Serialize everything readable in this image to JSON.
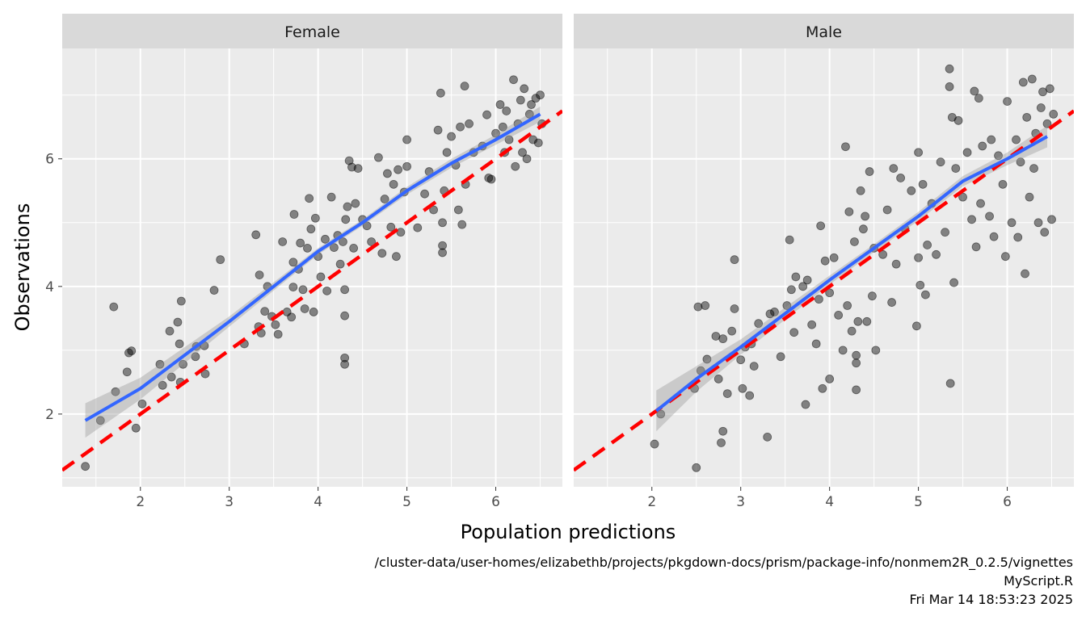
{
  "chart_data": {
    "type": "scatter",
    "xlabel": "Population predictions",
    "ylabel": "Observations",
    "xlim": [
      1.12,
      6.75
    ],
    "ylim": [
      0.86,
      7.73
    ],
    "xticks": [
      2,
      3,
      4,
      5,
      6
    ],
    "yticks": [
      2,
      4,
      6
    ],
    "grid": true,
    "reference_line": {
      "type": "identity",
      "color": "#ff0000",
      "style": "dashed"
    },
    "smooth_color": "#3366ff",
    "point_color": "#000000",
    "panels": [
      {
        "label": "Female",
        "points": [
          [
            1.38,
            1.18
          ],
          [
            1.55,
            1.9
          ],
          [
            1.7,
            3.68
          ],
          [
            1.72,
            2.35
          ],
          [
            1.85,
            2.66
          ],
          [
            1.87,
            2.96
          ],
          [
            1.9,
            2.99
          ],
          [
            1.95,
            1.78
          ],
          [
            2.02,
            2.16
          ],
          [
            2.22,
            2.78
          ],
          [
            2.25,
            2.45
          ],
          [
            2.33,
            3.3
          ],
          [
            2.35,
            2.58
          ],
          [
            2.42,
            3.44
          ],
          [
            2.44,
            3.1
          ],
          [
            2.46,
            3.77
          ],
          [
            2.48,
            2.78
          ],
          [
            2.45,
            2.5
          ],
          [
            2.62,
            2.9
          ],
          [
            2.63,
            3.06
          ],
          [
            2.72,
            3.07
          ],
          [
            2.73,
            2.63
          ],
          [
            2.83,
            3.94
          ],
          [
            2.9,
            4.42
          ],
          [
            3.17,
            3.1
          ],
          [
            3.3,
            4.81
          ],
          [
            3.33,
            3.37
          ],
          [
            3.34,
            4.18
          ],
          [
            3.36,
            3.27
          ],
          [
            3.4,
            3.61
          ],
          [
            3.43,
            4.0
          ],
          [
            3.48,
            3.53
          ],
          [
            3.52,
            3.4
          ],
          [
            3.55,
            3.25
          ],
          [
            3.6,
            4.7
          ],
          [
            3.65,
            3.6
          ],
          [
            3.7,
            3.52
          ],
          [
            3.72,
            3.99
          ],
          [
            3.72,
            4.38
          ],
          [
            3.73,
            5.13
          ],
          [
            3.78,
            4.27
          ],
          [
            3.8,
            4.68
          ],
          [
            3.83,
            3.95
          ],
          [
            3.85,
            3.65
          ],
          [
            3.88,
            4.6
          ],
          [
            3.9,
            5.38
          ],
          [
            3.92,
            4.9
          ],
          [
            3.95,
            3.6
          ],
          [
            3.97,
            5.07
          ],
          [
            4.0,
            4.47
          ],
          [
            4.03,
            4.15
          ],
          [
            4.08,
            4.74
          ],
          [
            4.1,
            3.93
          ],
          [
            4.15,
            5.4
          ],
          [
            4.18,
            4.61
          ],
          [
            4.22,
            4.8
          ],
          [
            4.25,
            4.35
          ],
          [
            4.28,
            4.7
          ],
          [
            4.3,
            3.54
          ],
          [
            4.3,
            2.88
          ],
          [
            4.3,
            2.78
          ],
          [
            4.3,
            3.95
          ],
          [
            4.31,
            5.05
          ],
          [
            4.33,
            5.25
          ],
          [
            4.35,
            5.97
          ],
          [
            4.38,
            5.87
          ],
          [
            4.4,
            4.6
          ],
          [
            4.42,
            5.3
          ],
          [
            4.45,
            5.85
          ],
          [
            4.5,
            5.05
          ],
          [
            4.55,
            4.95
          ],
          [
            4.6,
            4.7
          ],
          [
            4.68,
            6.02
          ],
          [
            4.72,
            4.52
          ],
          [
            4.75,
            5.37
          ],
          [
            4.78,
            5.77
          ],
          [
            4.82,
            4.93
          ],
          [
            4.85,
            5.6
          ],
          [
            4.88,
            4.47
          ],
          [
            4.9,
            5.83
          ],
          [
            4.93,
            4.85
          ],
          [
            4.97,
            5.48
          ],
          [
            5.0,
            6.3
          ],
          [
            5.0,
            5.88
          ],
          [
            5.12,
            4.92
          ],
          [
            5.2,
            5.45
          ],
          [
            5.25,
            5.8
          ],
          [
            5.3,
            5.2
          ],
          [
            5.35,
            6.45
          ],
          [
            5.38,
            7.03
          ],
          [
            5.4,
            4.53
          ],
          [
            5.4,
            4.64
          ],
          [
            5.4,
            5.0
          ],
          [
            5.42,
            5.5
          ],
          [
            5.45,
            6.1
          ],
          [
            5.5,
            6.35
          ],
          [
            5.55,
            5.9
          ],
          [
            5.58,
            5.2
          ],
          [
            5.6,
            6.5
          ],
          [
            5.62,
            4.97
          ],
          [
            5.65,
            7.14
          ],
          [
            5.66,
            5.6
          ],
          [
            5.7,
            6.55
          ],
          [
            5.75,
            6.1
          ],
          [
            5.85,
            6.2
          ],
          [
            5.9,
            6.69
          ],
          [
            5.92,
            5.7
          ],
          [
            5.95,
            5.68
          ],
          [
            6.0,
            6.4
          ],
          [
            6.05,
            6.85
          ],
          [
            6.08,
            6.5
          ],
          [
            6.1,
            6.1
          ],
          [
            6.12,
            6.75
          ],
          [
            6.15,
            6.3
          ],
          [
            6.2,
            7.24
          ],
          [
            6.22,
            5.88
          ],
          [
            6.25,
            6.55
          ],
          [
            6.28,
            6.92
          ],
          [
            6.3,
            6.1
          ],
          [
            6.32,
            7.1
          ],
          [
            6.35,
            6.0
          ],
          [
            6.38,
            6.7
          ],
          [
            6.4,
            6.85
          ],
          [
            6.42,
            6.3
          ],
          [
            6.45,
            6.95
          ],
          [
            6.48,
            6.25
          ],
          [
            6.5,
            7.0
          ],
          [
            6.52,
            6.55
          ]
        ],
        "smooth": [
          [
            1.38,
            1.9,
            0.27
          ],
          [
            2,
            2.4,
            0.17
          ],
          [
            3,
            3.45,
            0.08
          ],
          [
            4,
            4.55,
            0.05
          ],
          [
            4.5,
            5.0,
            0.05
          ],
          [
            5,
            5.5,
            0.06
          ],
          [
            5.5,
            5.93,
            0.07
          ],
          [
            6,
            6.3,
            0.08
          ],
          [
            6.5,
            6.7,
            0.12
          ]
        ]
      },
      {
        "label": "Male",
        "points": [
          [
            2.03,
            1.53
          ],
          [
            2.1,
            2.0
          ],
          [
            2.48,
            2.4
          ],
          [
            2.5,
            1.16
          ],
          [
            2.52,
            3.68
          ],
          [
            2.55,
            2.68
          ],
          [
            2.6,
            3.7
          ],
          [
            2.62,
            2.86
          ],
          [
            2.72,
            3.22
          ],
          [
            2.75,
            2.55
          ],
          [
            2.8,
            1.73
          ],
          [
            2.78,
            1.55
          ],
          [
            2.8,
            3.18
          ],
          [
            2.85,
            2.32
          ],
          [
            2.9,
            3.3
          ],
          [
            2.93,
            4.42
          ],
          [
            2.93,
            3.65
          ],
          [
            3.0,
            2.85
          ],
          [
            3.02,
            2.4
          ],
          [
            3.05,
            3.05
          ],
          [
            3.1,
            2.29
          ],
          [
            3.12,
            3.1
          ],
          [
            3.15,
            2.75
          ],
          [
            3.2,
            3.42
          ],
          [
            3.3,
            1.64
          ],
          [
            3.33,
            3.57
          ],
          [
            3.38,
            3.6
          ],
          [
            3.45,
            2.9
          ],
          [
            3.52,
            3.7
          ],
          [
            3.55,
            4.73
          ],
          [
            3.57,
            3.95
          ],
          [
            3.6,
            3.28
          ],
          [
            3.62,
            4.15
          ],
          [
            3.7,
            4.0
          ],
          [
            3.73,
            2.15
          ],
          [
            3.75,
            4.1
          ],
          [
            3.8,
            3.4
          ],
          [
            3.85,
            3.1
          ],
          [
            3.88,
            3.8
          ],
          [
            3.9,
            4.95
          ],
          [
            3.92,
            2.4
          ],
          [
            3.95,
            4.4
          ],
          [
            4.0,
            2.55
          ],
          [
            4.0,
            3.9
          ],
          [
            4.05,
            4.45
          ],
          [
            4.1,
            3.55
          ],
          [
            4.15,
            3.0
          ],
          [
            4.18,
            6.19
          ],
          [
            4.2,
            3.7
          ],
          [
            4.22,
            5.17
          ],
          [
            4.25,
            3.3
          ],
          [
            4.28,
            4.7
          ],
          [
            4.3,
            2.38
          ],
          [
            4.3,
            2.8
          ],
          [
            4.3,
            2.92
          ],
          [
            4.32,
            3.45
          ],
          [
            4.35,
            5.5
          ],
          [
            4.38,
            4.9
          ],
          [
            4.4,
            5.1
          ],
          [
            4.42,
            3.45
          ],
          [
            4.45,
            5.8
          ],
          [
            4.48,
            3.85
          ],
          [
            4.5,
            4.6
          ],
          [
            4.52,
            3.0
          ],
          [
            4.6,
            4.5
          ],
          [
            4.65,
            5.2
          ],
          [
            4.7,
            3.75
          ],
          [
            4.72,
            5.85
          ],
          [
            4.75,
            4.35
          ],
          [
            4.8,
            5.7
          ],
          [
            4.85,
            4.9
          ],
          [
            4.92,
            5.5
          ],
          [
            4.98,
            3.38
          ],
          [
            5.0,
            6.1
          ],
          [
            5.0,
            4.45
          ],
          [
            5.02,
            4.02
          ],
          [
            5.05,
            5.6
          ],
          [
            5.08,
            3.87
          ],
          [
            5.1,
            4.65
          ],
          [
            5.15,
            5.3
          ],
          [
            5.2,
            4.5
          ],
          [
            5.25,
            5.95
          ],
          [
            5.3,
            4.85
          ],
          [
            5.35,
            7.41
          ],
          [
            5.35,
            7.13
          ],
          [
            5.36,
            2.48
          ],
          [
            5.38,
            6.65
          ],
          [
            5.4,
            4.06
          ],
          [
            5.42,
            5.85
          ],
          [
            5.45,
            6.6
          ],
          [
            5.5,
            5.4
          ],
          [
            5.55,
            6.1
          ],
          [
            5.6,
            5.05
          ],
          [
            5.63,
            7.06
          ],
          [
            5.65,
            4.62
          ],
          [
            5.68,
            6.95
          ],
          [
            5.7,
            5.3
          ],
          [
            5.72,
            6.2
          ],
          [
            5.8,
            5.1
          ],
          [
            5.82,
            6.3
          ],
          [
            5.85,
            4.78
          ],
          [
            5.9,
            6.05
          ],
          [
            5.95,
            5.6
          ],
          [
            5.98,
            4.47
          ],
          [
            6.0,
            6.9
          ],
          [
            6.05,
            5.0
          ],
          [
            6.1,
            6.3
          ],
          [
            6.12,
            4.77
          ],
          [
            6.15,
            5.95
          ],
          [
            6.18,
            7.2
          ],
          [
            6.2,
            4.2
          ],
          [
            6.22,
            6.65
          ],
          [
            6.25,
            5.4
          ],
          [
            6.28,
            7.25
          ],
          [
            6.3,
            5.85
          ],
          [
            6.32,
            6.4
          ],
          [
            6.35,
            5.0
          ],
          [
            6.38,
            6.8
          ],
          [
            6.4,
            7.05
          ],
          [
            6.42,
            4.85
          ],
          [
            6.45,
            6.55
          ],
          [
            6.48,
            7.1
          ],
          [
            6.5,
            5.05
          ],
          [
            6.52,
            6.7
          ]
        ],
        "smooth": [
          [
            2.05,
            2.05,
            0.32
          ],
          [
            2.5,
            2.55,
            0.2
          ],
          [
            3,
            3.05,
            0.12
          ],
          [
            4,
            4.1,
            0.07
          ],
          [
            4.5,
            4.6,
            0.06
          ],
          [
            5,
            5.1,
            0.07
          ],
          [
            5.5,
            5.65,
            0.08
          ],
          [
            6,
            6.0,
            0.1
          ],
          [
            6.45,
            6.35,
            0.17
          ]
        ]
      }
    ]
  },
  "caption": {
    "path": "/cluster-data/user-homes/elizabethb/projects/pkgdown-docs/prism/package-info/nonmem2R_0.2.5/vignettes",
    "script": "MyScript.R",
    "timestamp": "Fri Mar 14 18:53:23 2025"
  }
}
